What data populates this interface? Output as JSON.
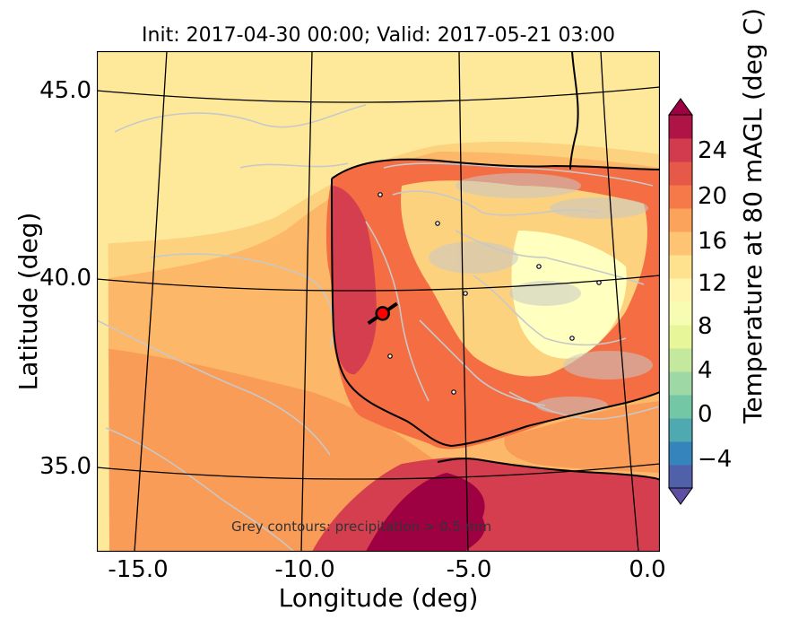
{
  "title": "Init: 2017-04-30 00:00; Valid: 2017-05-21 03:00",
  "map": {
    "xlabel": "Longitude (deg)",
    "ylabel": "Latitude (deg)",
    "lon_ticks": [
      "-15.0",
      "-10.0",
      "-5.0",
      "0.0"
    ],
    "lat_ticks": [
      "45.0",
      "40.0",
      "35.0"
    ],
    "annotation": "Grey contours: precipitation > 0.5 mm",
    "marker": {
      "lon": -7.6,
      "lat": 39.3,
      "color": "#ff0000"
    },
    "colors": {
      "sea_pale": "#fee99a",
      "sea_light": "#fdd27f",
      "sea_mid": "#fdb768",
      "sea_orange": "#f89c57",
      "land_orange": "#f46d43",
      "land_red": "#d53e4f",
      "land_hot": "#9e0142",
      "land_cool": "#ffffbf",
      "contour_grey": "#c8c8c8",
      "coast": "#000000"
    }
  },
  "colorbar": {
    "label": "Temperature at 80 mAGL (deg C)",
    "ticks": [
      "24",
      "20",
      "16",
      "12",
      "8",
      "4",
      "0",
      "−4"
    ],
    "range": [
      -6,
      26
    ],
    "step": 2
  }
}
